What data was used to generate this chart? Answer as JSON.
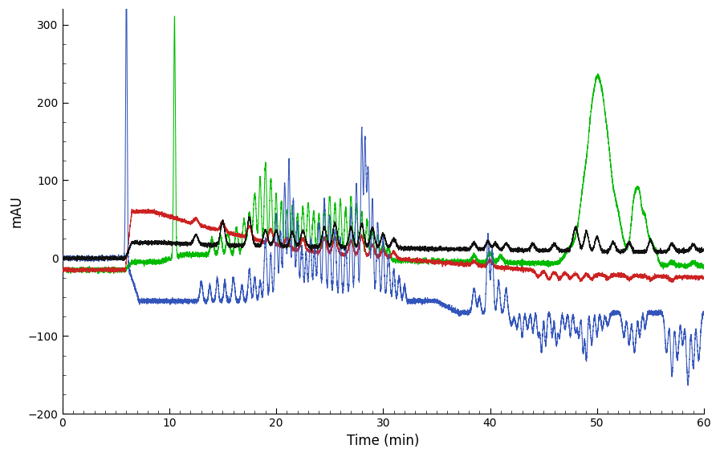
{
  "title": "",
  "xlabel": "Time (min)",
  "ylabel": "mAU",
  "xlim": [
    0,
    60
  ],
  "ylim": [
    -200,
    320
  ],
  "yticks": [
    -200,
    -100,
    0,
    100,
    200,
    300
  ],
  "xticks": [
    0,
    10,
    20,
    30,
    40,
    50,
    60
  ],
  "colors": {
    "blue": "#3355BB",
    "red": "#CC2222",
    "black": "#111111",
    "green": "#00BB00"
  },
  "background": "#ffffff",
  "figsize": [
    8.97,
    5.69
  ],
  "dpi": 100
}
